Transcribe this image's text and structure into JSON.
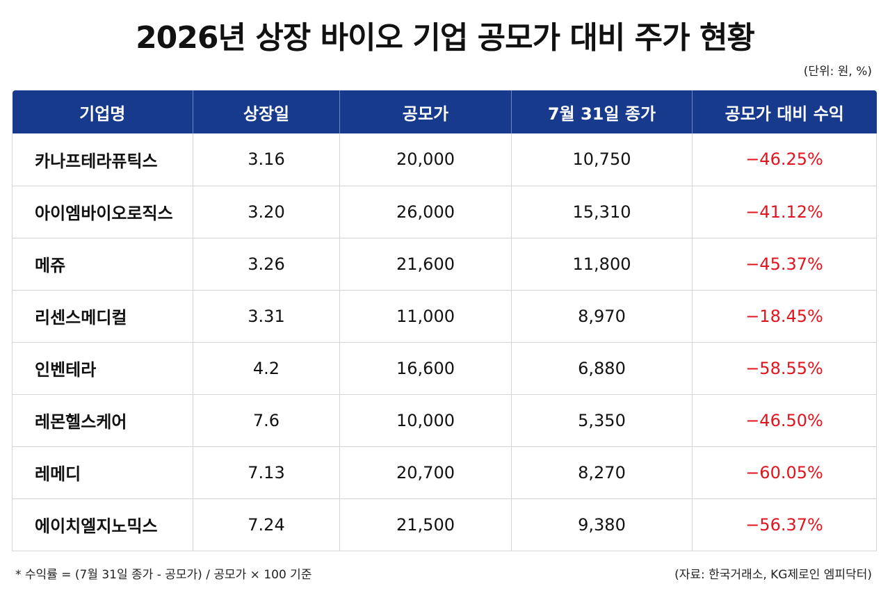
{
  "title": "2026년 상장 바이오 기업 공모가 대비 주가 현황",
  "unit_note": "(단위: 원, %)",
  "headers": [
    "기업명",
    "상장일",
    "공모가",
    "7월 31일 종가",
    "공모가 대비 수익"
  ],
  "rows": [
    {
      "company": "카나프테라퓨틱스",
      "date": "3.16",
      "ipo": "20,000",
      "close": "10,750",
      "ret": "−46.25%"
    },
    {
      "company": "아이엠바이오로직스",
      "date": "3.20",
      "ipo": "26,000",
      "close": "15,310",
      "ret": "−41.12%"
    },
    {
      "company": "메쥬",
      "date": "3.26",
      "ipo": "21,600",
      "close": "11,800",
      "ret": "−45.37%"
    },
    {
      "company": "리센스메디컬",
      "date": "3.31",
      "ipo": "11,000",
      "close": "8,970",
      "ret": "−18.45%"
    },
    {
      "company": "인벤테라",
      "date": "4.2",
      "ipo": "16,600",
      "close": "6,880",
      "ret": "−58.55%"
    },
    {
      "company": "레몬헬스케어",
      "date": "7.6",
      "ipo": "10,000",
      "close": "5,350",
      "ret": "−46.50%"
    },
    {
      "company": "레메디",
      "date": "7.13",
      "ipo": "20,700",
      "close": "8,270",
      "ret": "−60.05%"
    },
    {
      "company": "에이치엘지노믹스",
      "date": "7.24",
      "ipo": "21,500",
      "close": "9,380",
      "ret": "−56.37%"
    }
  ],
  "footnote": "* 수익률 = (7월 31일 종가 - 공모가) / 공모가 × 100 기준",
  "source": "(자료: 한국거래소, KG제로인 엠피닥터)",
  "colors": {
    "header_bg": "#183a8c",
    "negative": "#e0141e"
  }
}
